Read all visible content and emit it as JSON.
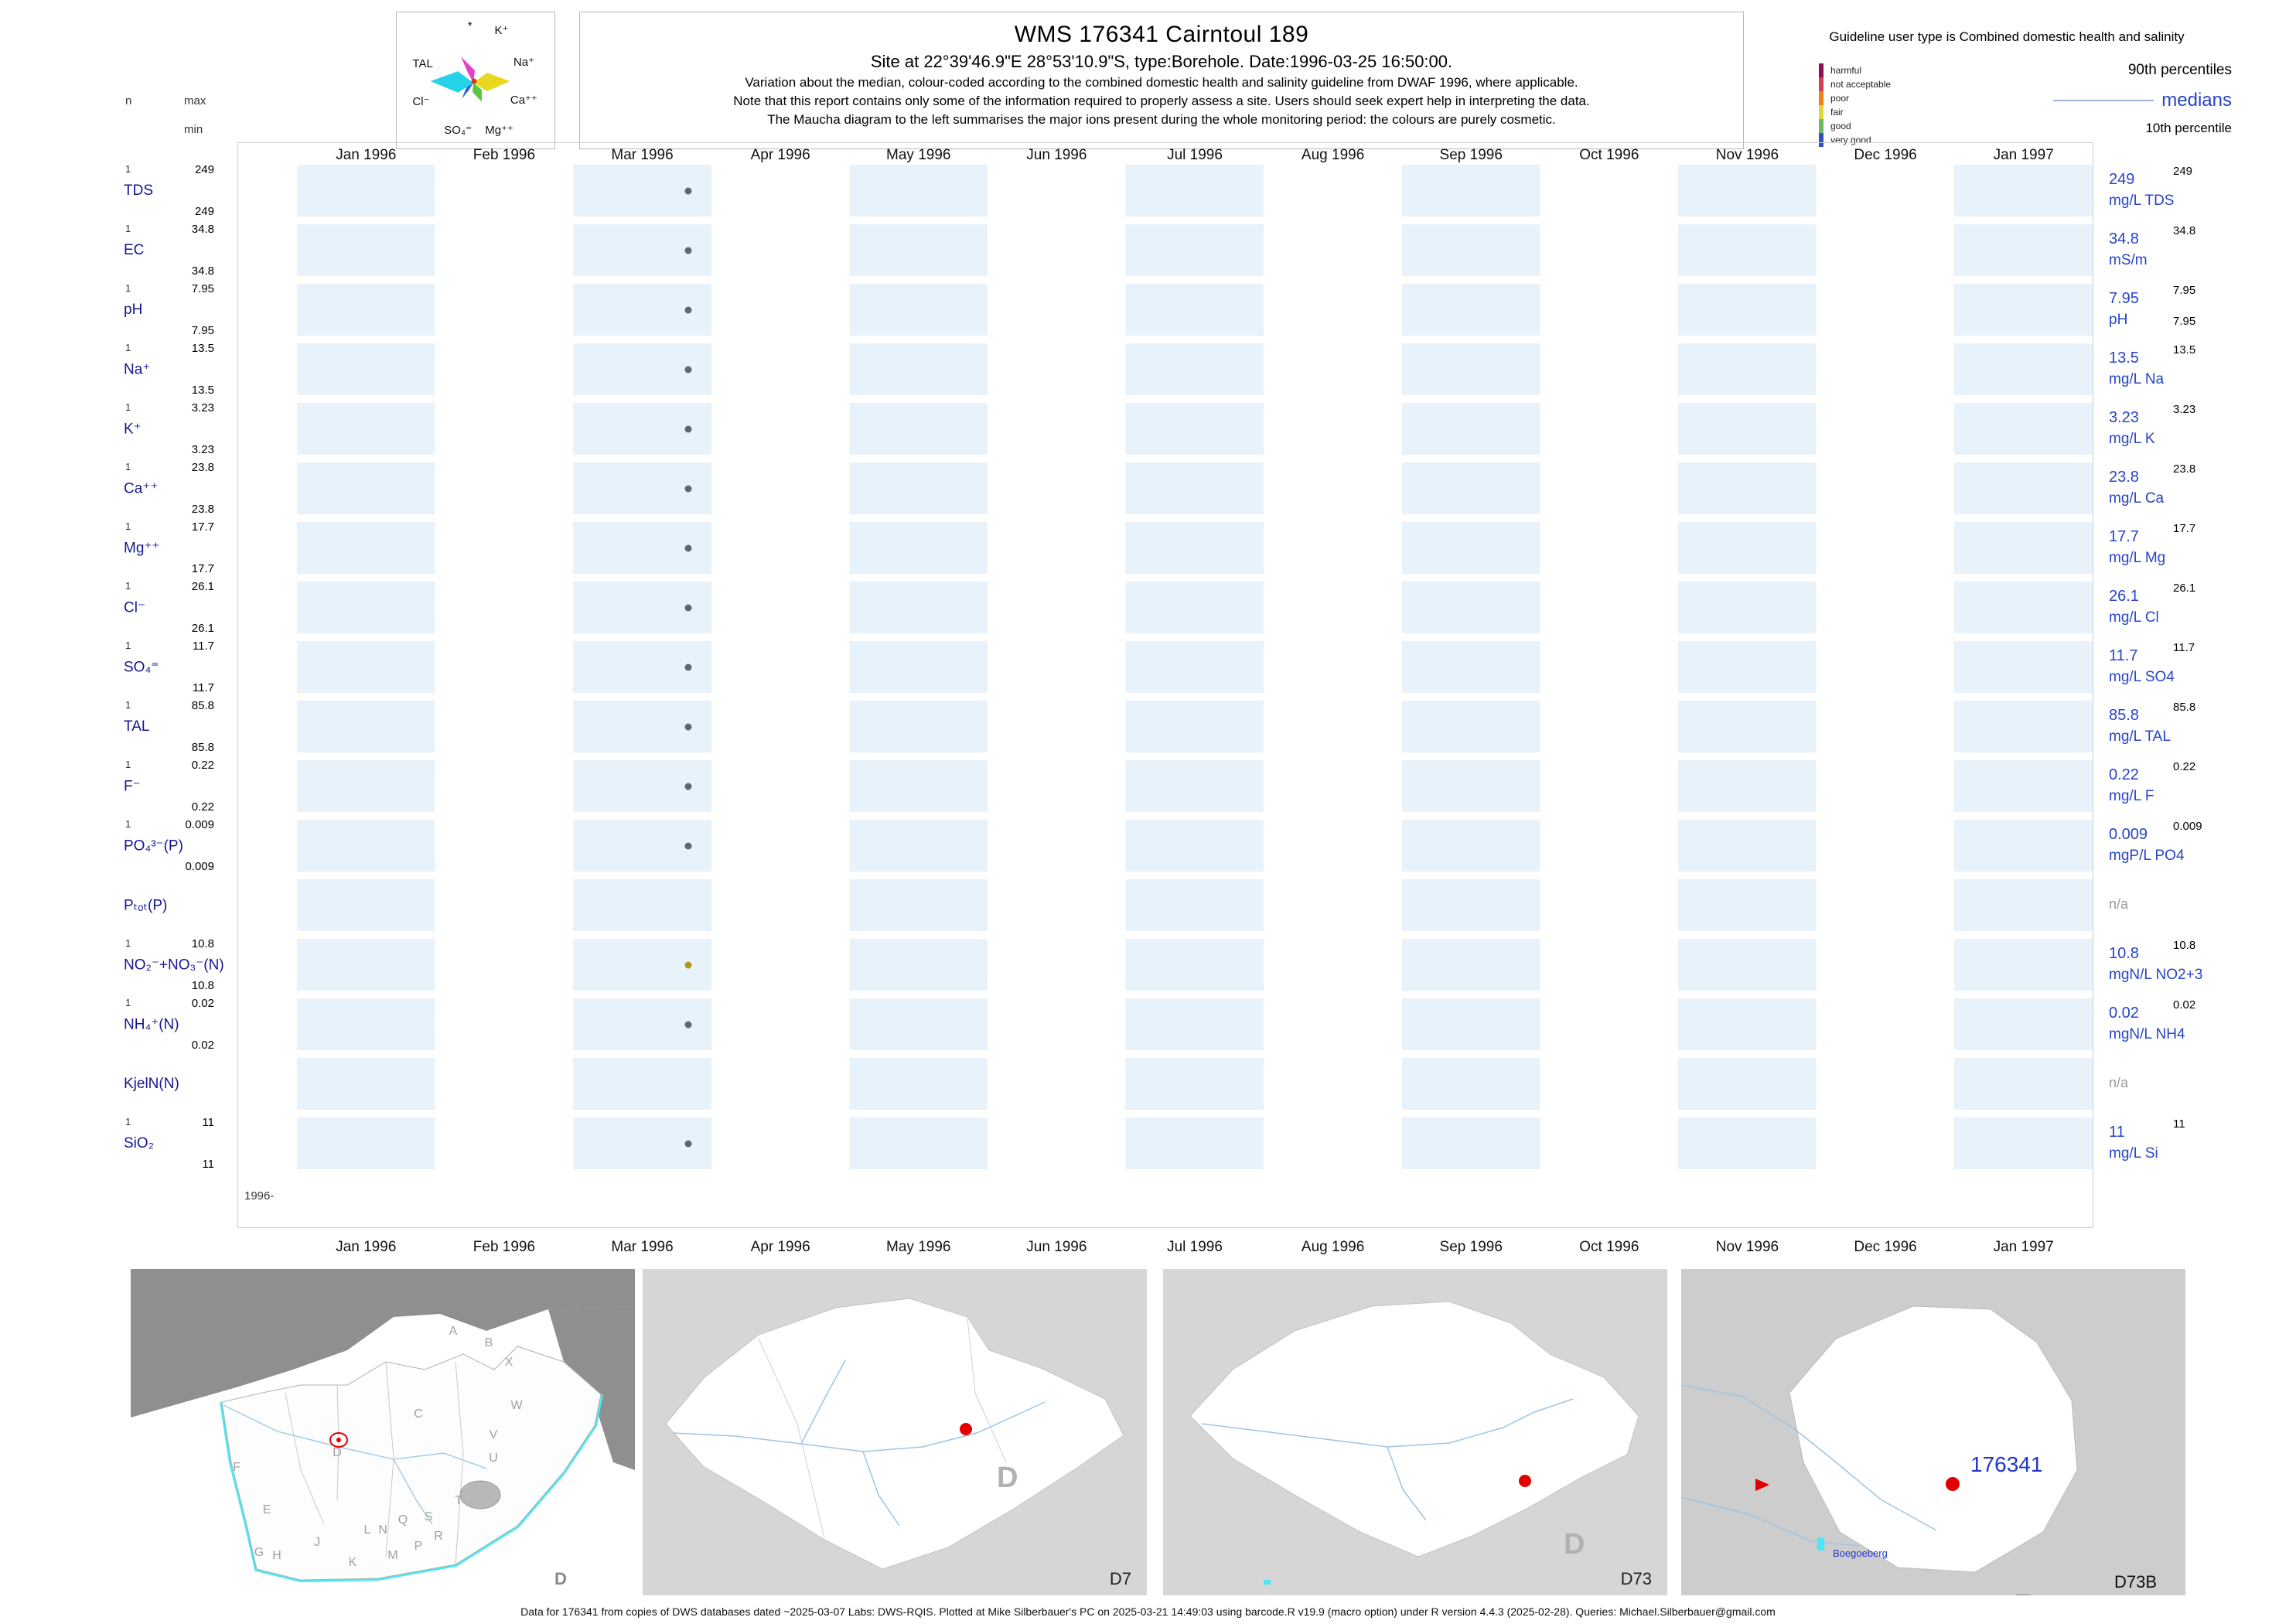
{
  "header": {
    "title": "WMS 176341  Cairntoul 189",
    "subtitle": "Site at 22°39'46.9\"E 28°53'10.9\"S, type:Borehole. Date:1996-03-25 16:50:00.",
    "note1": "Variation about the median,  colour-coded according to the combined domestic health and salinity guideline from DWAF 1996, where applicable.",
    "note2": "Note that this report contains only some of the information required to properly assess a site. Users should seek expert help in interpreting the data.",
    "note3": "The Maucha diagram to the left summarises the major ions present during the whole monitoring period: the colours are purely cosmetic."
  },
  "axis_headers": {
    "n": "n",
    "max": "max",
    "min": "min"
  },
  "maucha_legend": {
    "star_label": "*",
    "ions": {
      "k": "K⁺",
      "na": "Na⁺",
      "tal": "TAL",
      "cl": "Cl⁻",
      "ca": "Ca⁺⁺",
      "so4": "SO₄⁼",
      "mg": "Mg⁺⁺"
    }
  },
  "guideline_legend": {
    "title": "Guideline user type is Combined domestic health and salinity",
    "classes": [
      {
        "label": "harmful",
        "color": "#8e0f52"
      },
      {
        "label": "not acceptable",
        "color": "#d53e4f"
      },
      {
        "label": "poor",
        "color": "#f08214"
      },
      {
        "label": "fair",
        "color": "#e3d832"
      },
      {
        "label": "good",
        "color": "#66bd63"
      },
      {
        "label": "very good",
        "color": "#2b50c8"
      }
    ],
    "p90_label": "90th percentiles",
    "median_label": "medians",
    "p10_label": "10th percentile"
  },
  "chart_data": {
    "type": "scatter",
    "title": "WMS 176341 Cairntoul 189",
    "site": "Borehole at 22°39'46.9\"E 28°53'10.9\"S",
    "sample_date": "1996-03-25",
    "x_axis": {
      "months": [
        "Jan 1996",
        "Feb 1996",
        "Mar 1996",
        "Apr 1996",
        "May 1996",
        "Jun 1996",
        "Jul 1996",
        "Aug 1996",
        "Sep 1996",
        "Oct 1996",
        "Nov 1996",
        "Dec 1996",
        "Jan 1997"
      ],
      "year_tick": "1996-"
    },
    "dot_x_percent": 21.8,
    "rows": [
      {
        "param": "TDS",
        "label": "TDS",
        "n": "1",
        "max": "249",
        "min": "249",
        "median": "249",
        "p90": "249",
        "unit": "mg/L TDS",
        "value": 249,
        "dot_color": "#5d686e",
        "has_data": true
      },
      {
        "param": "EC",
        "label": "EC",
        "n": "1",
        "max": "34.8",
        "min": "34.8",
        "median": "34.8",
        "p90": "34.8",
        "unit": "mS/m",
        "value": 34.8,
        "dot_color": "#5d686e",
        "has_data": true
      },
      {
        "param": "pH",
        "label": "pH",
        "n": "1",
        "max": "7.95",
        "min": "7.95",
        "median": "7.95",
        "p90": "7.95",
        "p10": "7.95",
        "unit": "pH",
        "value": 7.95,
        "dot_color": "#5d686e",
        "has_data": true
      },
      {
        "param": "Na",
        "label": "Na⁺",
        "n": "1",
        "max": "13.5",
        "min": "13.5",
        "median": "13.5",
        "p90": "13.5",
        "unit": "mg/L Na",
        "value": 13.5,
        "dot_color": "#5d686e",
        "has_data": true
      },
      {
        "param": "K",
        "label": "K⁺",
        "n": "1",
        "max": "3.23",
        "min": "3.23",
        "median": "3.23",
        "p90": "3.23",
        "unit": "mg/L K",
        "value": 3.23,
        "dot_color": "#5d686e",
        "has_data": true
      },
      {
        "param": "Ca",
        "label": "Ca⁺⁺",
        "n": "1",
        "max": "23.8",
        "min": "23.8",
        "median": "23.8",
        "p90": "23.8",
        "unit": "mg/L Ca",
        "value": 23.8,
        "dot_color": "#5d686e",
        "has_data": true
      },
      {
        "param": "Mg",
        "label": "Mg⁺⁺",
        "n": "1",
        "max": "17.7",
        "min": "17.7",
        "median": "17.7",
        "p90": "17.7",
        "unit": "mg/L Mg",
        "value": 17.7,
        "dot_color": "#5d686e",
        "has_data": true
      },
      {
        "param": "Cl",
        "label": "Cl⁻",
        "n": "1",
        "max": "26.1",
        "min": "26.1",
        "median": "26.1",
        "p90": "26.1",
        "unit": "mg/L Cl",
        "value": 26.1,
        "dot_color": "#5d686e",
        "has_data": true
      },
      {
        "param": "SO4",
        "label": "SO₄⁼",
        "n": "1",
        "max": "11.7",
        "min": "11.7",
        "median": "11.7",
        "p90": "11.7",
        "unit": "mg/L SO4",
        "value": 11.7,
        "dot_color": "#5d686e",
        "has_data": true
      },
      {
        "param": "TAL",
        "label": "TAL",
        "n": "1",
        "max": "85.8",
        "min": "85.8",
        "median": "85.8",
        "p90": "85.8",
        "unit": "mg/L TAL",
        "value": 85.8,
        "dot_color": "#5d686e",
        "has_data": true
      },
      {
        "param": "F",
        "label": "F⁻",
        "n": "1",
        "max": "0.22",
        "min": "0.22",
        "median": "0.22",
        "p90": "0.22",
        "unit": "mg/L F",
        "value": 0.22,
        "dot_color": "#5d686e",
        "has_data": true
      },
      {
        "param": "PO4",
        "label": "PO₄³⁻(P)",
        "n": "1",
        "max": "0.009",
        "min": "0.009",
        "median": "0.009",
        "p90": "0.009",
        "unit": "mgP/L PO4",
        "value": 0.009,
        "dot_color": "#5d686e",
        "has_data": true
      },
      {
        "param": "Ptot",
        "label": "Pₜₒₜ(P)",
        "na": "n/a",
        "has_data": false
      },
      {
        "param": "NO2+NO3",
        "label": "NO₂⁻+NO₃⁻(N)",
        "n": "1",
        "max": "10.8",
        "min": "10.8",
        "median": "10.8",
        "p90": "10.8",
        "unit": "mgN/L NO2+3",
        "value": 10.8,
        "dot_color": "#b0981f",
        "has_data": true
      },
      {
        "param": "NH4",
        "label": "NH₄⁺(N)",
        "n": "1",
        "max": "0.02",
        "min": "0.02",
        "median": "0.02",
        "p90": "0.02",
        "unit": "mgN/L NH4",
        "value": 0.02,
        "dot_color": "#5d686e",
        "has_data": true
      },
      {
        "param": "KjelN",
        "label": "KjelN(N)",
        "na": "n/a",
        "has_data": false
      },
      {
        "param": "SiO2",
        "label": "SiO₂",
        "n": "1",
        "max": "11",
        "min": "11",
        "median": "11",
        "p90": "11",
        "unit": "mg/L Si",
        "value": 11,
        "dot_color": "#5d686e",
        "has_data": true
      }
    ]
  },
  "maps": {
    "panels": [
      {
        "name": "South Africa primary drainage regions",
        "corner_label": "D",
        "letters": [
          "A",
          "B",
          "X",
          "C",
          "W",
          "V",
          "U",
          "T",
          "S",
          "R",
          "Q",
          "P",
          "N",
          "M",
          "L",
          "K",
          "J",
          "H",
          "G",
          "E",
          "F",
          "D"
        ]
      },
      {
        "name": "Primary drainage region D",
        "corner_label": "D7",
        "big_letter": "D"
      },
      {
        "name": "Secondary drainage region D73",
        "corner_label": "D73",
        "big_letter": "D"
      },
      {
        "name": "Quaternary catchment D73B",
        "corner_label": "D73B",
        "big_letter": "D",
        "site_label": "176341",
        "place_label": "Boegoeberg"
      }
    ]
  },
  "footer": {
    "text": "Data for 176341 from copies of DWS databases dated ~2025-03-07 Labs: DWS-RQIS. Plotted at Mike Silberbauer's PC on 2025-03-21 14:49:03 using barcode.R v19.9 (macro option) under R version 4.4.3 (2025-02-28). Queries: Michael.Silberbauer@gmail.com"
  }
}
